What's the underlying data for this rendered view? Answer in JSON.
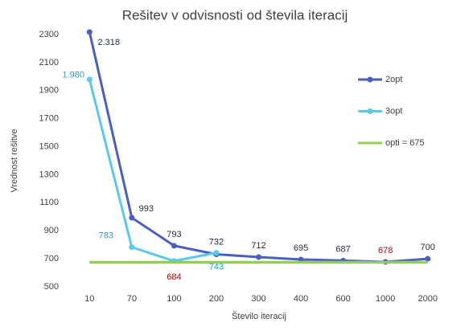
{
  "chart_data": {
    "type": "line",
    "title": "Rešitev v odvisnosti od števila iteracij",
    "x_label": "Število iteracij",
    "y_label": "Vrednost rešitve",
    "categories": [
      "10",
      "70",
      "100",
      "200",
      "300",
      "400",
      "600",
      "1000",
      "2000"
    ],
    "ylim": [
      500,
      2300
    ],
    "yticks": [
      500,
      700,
      900,
      1100,
      1300,
      1500,
      1700,
      1900,
      2100,
      2300
    ],
    "legend": "right",
    "series": [
      {
        "name": "2opt",
        "color": "#4a5fc1",
        "marker": true,
        "values": [
          2318,
          993,
          793,
          732,
          712,
          695,
          687,
          678,
          700
        ],
        "value_labels": [
          "2.318",
          "993",
          "793",
          "732",
          "712",
          "695",
          "687",
          "678",
          "700"
        ],
        "label_colors": [
          "#1f2a44",
          "#1f2a44",
          "#1f2a44",
          "#1f2a44",
          "#1f2a44",
          "#1f2a44",
          "#1f2a44",
          "#c00000",
          "#1f2a44"
        ]
      },
      {
        "name": "3opt",
        "color": "#5bc8ef",
        "marker": true,
        "values": [
          1980,
          783,
          684,
          743,
          null,
          null,
          null,
          null,
          null
        ],
        "value_labels": [
          "1.980",
          "783",
          "684",
          "743",
          null,
          null,
          null,
          null,
          null
        ],
        "label_colors": [
          "#20a5d0",
          "#20a5d0",
          "#c00000",
          "#20a5d0",
          null,
          null,
          null,
          null,
          null
        ]
      },
      {
        "name": "opti = 675",
        "color": "#92d050",
        "marker": false,
        "values": [
          675,
          675,
          675,
          675,
          675,
          675,
          675,
          675,
          675
        ]
      }
    ]
  }
}
